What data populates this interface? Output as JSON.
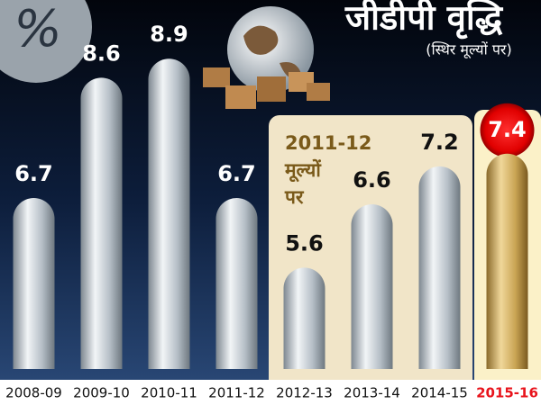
{
  "chart_data": {
    "type": "bar",
    "title": "जीडीपी वृद्धि",
    "subtitle": "(स्थिर मूल्यों पर)",
    "icon_text": "%",
    "annotation": {
      "lines": [
        "2011-12",
        "मूल्यों",
        "पर"
      ]
    },
    "categories": [
      "2008-09",
      "2009-10",
      "2010-11",
      "2011-12",
      "2012-13",
      "2013-14",
      "2014-15",
      "2015-16"
    ],
    "values": [
      6.7,
      8.6,
      8.9,
      6.7,
      5.6,
      6.6,
      7.2,
      7.4
    ],
    "color": "#c9d0d6",
    "highlight_color": "#c9a453",
    "highlight_label_color": "#e8141c",
    "ylim": [
      4,
      9.5
    ]
  }
}
